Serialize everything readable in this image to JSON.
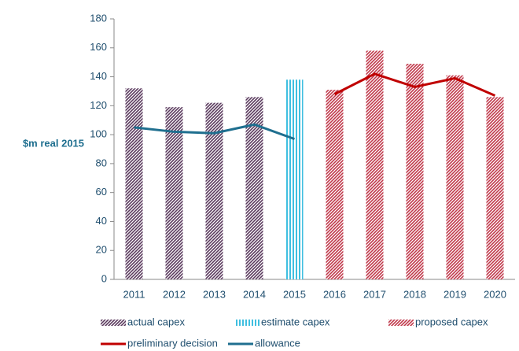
{
  "chart_data": {
    "type": "bar",
    "y_label": "$m real 2015",
    "categories": [
      "2011",
      "2012",
      "2013",
      "2014",
      "2015",
      "2016",
      "2017",
      "2018",
      "2019",
      "2020"
    ],
    "series": [
      {
        "name": "actual capex",
        "type": "bar",
        "hatch": "diagonal",
        "color": "#5b3a5e",
        "values": [
          132,
          119,
          122,
          126,
          null,
          null,
          null,
          null,
          null,
          null
        ]
      },
      {
        "name": "estimate capex",
        "type": "bar",
        "hatch": "vertical",
        "color": "#3fbfe0",
        "values": [
          null,
          null,
          null,
          null,
          138,
          null,
          null,
          null,
          null,
          null
        ]
      },
      {
        "name": "proposed capex",
        "type": "bar",
        "hatch": "diagonal",
        "color": "#c0394b",
        "values": [
          null,
          null,
          null,
          null,
          null,
          131,
          158,
          149,
          141,
          126
        ]
      },
      {
        "name": "preliminary decision",
        "type": "line",
        "color": "#c00000",
        "values": [
          null,
          null,
          null,
          null,
          null,
          128,
          142,
          133,
          139,
          127
        ]
      },
      {
        "name": "allowance",
        "type": "line",
        "color": "#1f6f8f",
        "values": [
          105,
          102,
          101,
          107,
          97,
          null,
          null,
          null,
          null,
          null
        ]
      }
    ],
    "ylim": [
      0,
      180
    ],
    "yticks": [
      0,
      20,
      40,
      60,
      80,
      100,
      120,
      140,
      160,
      180
    ]
  }
}
